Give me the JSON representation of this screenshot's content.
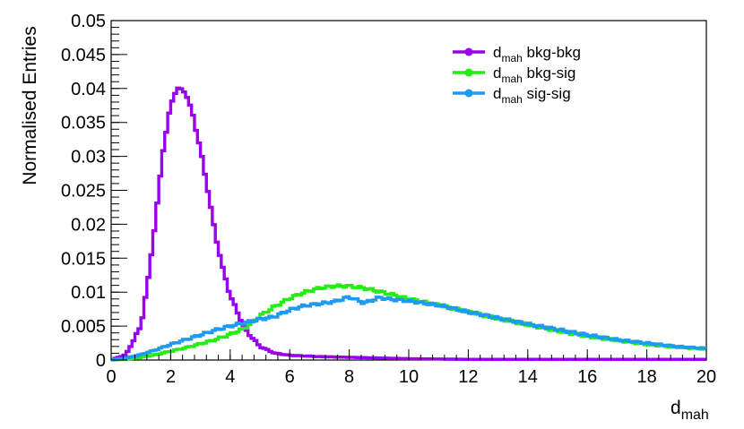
{
  "chart_data": {
    "type": "line",
    "style": "step-histogram",
    "xlabel": "d",
    "xlabel_sub": "mah",
    "ylabel": "Normalised Entries",
    "xlim": [
      0,
      20
    ],
    "ylim": [
      0,
      0.05
    ],
    "x_ticks": [
      "0",
      "2",
      "4",
      "6",
      "8",
      "10",
      "12",
      "14",
      "16",
      "18",
      "20"
    ],
    "y_ticks": [
      "0",
      "0.005",
      "0.01",
      "0.015",
      "0.02",
      "0.025",
      "0.03",
      "0.035",
      "0.04",
      "0.045",
      "0.05"
    ],
    "grid": false,
    "legend_position": "top-right",
    "series": [
      {
        "name_main": "d",
        "name_sub": "mah",
        "name_rest": " bkg-bkg",
        "color": "#9900ee",
        "x": [
          0,
          0.5,
          1,
          1.25,
          1.5,
          1.75,
          2,
          2.2,
          2.5,
          2.75,
          3,
          3.25,
          3.5,
          3.75,
          4,
          4.5,
          5,
          5.5,
          6,
          7,
          8,
          9,
          10,
          12,
          14,
          16,
          18,
          20
        ],
        "y": [
          0,
          0.0008,
          0.005,
          0.012,
          0.021,
          0.031,
          0.0375,
          0.0401,
          0.0395,
          0.036,
          0.031,
          0.025,
          0.0185,
          0.0135,
          0.0095,
          0.0045,
          0.002,
          0.001,
          0.0007,
          0.0005,
          0.0004,
          0.0003,
          0.0002,
          0.0001,
          0.0001,
          0.0001,
          0.0001,
          0.0001
        ]
      },
      {
        "name_main": "d",
        "name_sub": "mah",
        "name_rest": " bkg-sig",
        "color": "#22ee11",
        "x": [
          0,
          0.5,
          1,
          1.5,
          2,
          2.5,
          3,
          3.5,
          4,
          4.5,
          5,
          5.5,
          6,
          6.5,
          7,
          7.5,
          8,
          8.5,
          9,
          9.5,
          10,
          11,
          12,
          13,
          14,
          15,
          16,
          17,
          18,
          19,
          20
        ],
        "y": [
          0,
          0.0001,
          0.0004,
          0.0008,
          0.0013,
          0.0018,
          0.0024,
          0.003,
          0.0038,
          0.0047,
          0.0065,
          0.0079,
          0.0091,
          0.01,
          0.0106,
          0.0109,
          0.0109,
          0.0106,
          0.0101,
          0.0096,
          0.009,
          0.0081,
          0.0071,
          0.0061,
          0.0052,
          0.0043,
          0.0035,
          0.0029,
          0.0023,
          0.0019,
          0.0016
        ]
      },
      {
        "name_main": "d",
        "name_sub": "mah",
        "name_rest": " sig-sig",
        "color": "#1e9bf0",
        "x": [
          0,
          0.5,
          1,
          1.5,
          2,
          2.5,
          3,
          3.5,
          4,
          4.5,
          5,
          5.5,
          6,
          6.5,
          7,
          7.5,
          8,
          8.5,
          9,
          9.5,
          10,
          11,
          12,
          13,
          14,
          15,
          16,
          17,
          18,
          19,
          20
        ],
        "y": [
          0,
          0.0003,
          0.0008,
          0.0015,
          0.0023,
          0.003,
          0.0037,
          0.0044,
          0.005,
          0.0055,
          0.006,
          0.0064,
          0.0074,
          0.008,
          0.0083,
          0.0086,
          0.0093,
          0.0084,
          0.0092,
          0.0089,
          0.0087,
          0.0081,
          0.0071,
          0.0062,
          0.0053,
          0.0045,
          0.0037,
          0.003,
          0.0025,
          0.002,
          0.0017
        ]
      }
    ]
  }
}
